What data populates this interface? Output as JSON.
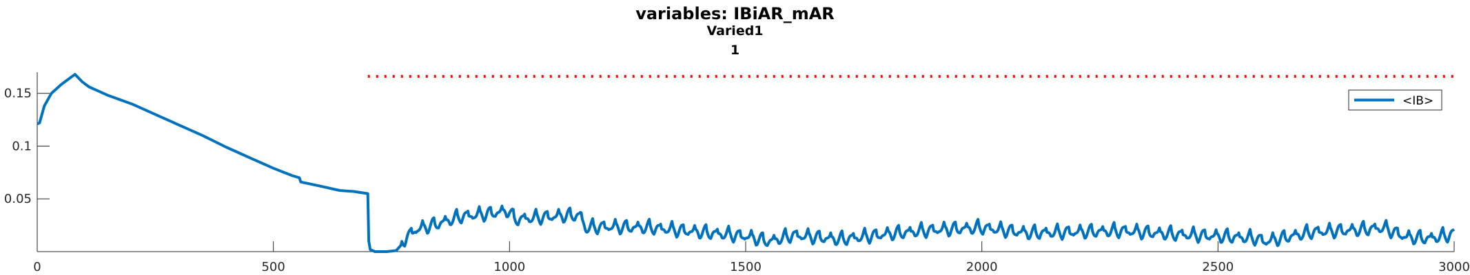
{
  "chart_data": {
    "type": "line",
    "title": "variables: IBiAR_mAR",
    "subtitle_lines": [
      "Varied1",
      "1"
    ],
    "xlim": [
      0,
      3000
    ],
    "ylim": [
      0,
      0.17
    ],
    "x_ticks": [
      0,
      500,
      1000,
      1500,
      2000,
      2500,
      3000
    ],
    "x_tick_labels": [
      "0",
      "500",
      "1000",
      "1500",
      "2000",
      "2500",
      "3000"
    ],
    "y_ticks": [
      0.05,
      0.1,
      0.15
    ],
    "y_tick_labels": [
      "0.05",
      "0.1",
      "0.15"
    ],
    "grid": false,
    "legend": {
      "position": "top-right",
      "entries": [
        "<IB>"
      ]
    },
    "reference_line": {
      "style": "dotted",
      "color": "#ff0000",
      "y": 0.166,
      "x_start": 700,
      "x_end": 3000
    },
    "series": [
      {
        "name": "<IB>",
        "color": "#0072bd",
        "x": [
          0,
          5,
          15,
          30,
          50,
          65,
          80,
          95,
          110,
          130,
          150,
          200,
          250,
          300,
          350,
          400,
          450,
          500,
          540,
          555,
          558,
          600,
          640,
          670,
          700,
          702,
          705,
          715,
          740,
          760,
          770
        ],
        "y": [
          0.121,
          0.122,
          0.138,
          0.15,
          0.158,
          0.163,
          0.168,
          0.161,
          0.156,
          0.152,
          0.148,
          0.14,
          0.13,
          0.12,
          0.11,
          0.099,
          0.089,
          0.079,
          0.072,
          0.07,
          0.066,
          0.062,
          0.058,
          0.057,
          0.055,
          0.01,
          0.002,
          0.0,
          0.0,
          0.001,
          0.006
        ]
      }
    ],
    "oscillation_segment": {
      "x_start": 770,
      "x_end": 3000,
      "period": 24,
      "amplitude": 0.013,
      "envelope_x": [
        770,
        800,
        850,
        900,
        950,
        1000,
        1010,
        1100,
        1150,
        1160,
        1200,
        1300,
        1400,
        1500,
        1550,
        1600,
        1700,
        1800,
        1900,
        2000,
        2100,
        2200,
        2300,
        2400,
        2500,
        2580,
        2600,
        2700,
        2800,
        2850,
        2900,
        2950,
        3000
      ],
      "envelope_y": [
        0.01,
        0.022,
        0.028,
        0.035,
        0.037,
        0.04,
        0.032,
        0.035,
        0.036,
        0.024,
        0.025,
        0.024,
        0.02,
        0.016,
        0.011,
        0.017,
        0.013,
        0.018,
        0.022,
        0.024,
        0.019,
        0.02,
        0.021,
        0.018,
        0.016,
        0.014,
        0.011,
        0.02,
        0.022,
        0.024,
        0.015,
        0.014,
        0.018
      ]
    }
  }
}
